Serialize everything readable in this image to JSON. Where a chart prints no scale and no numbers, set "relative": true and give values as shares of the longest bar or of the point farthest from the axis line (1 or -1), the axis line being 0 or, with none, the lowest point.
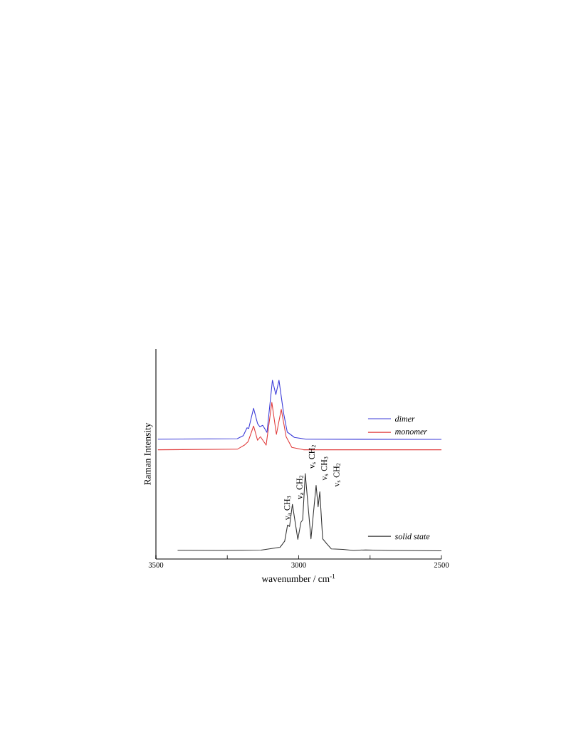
{
  "chart_data": {
    "type": "line",
    "relative": true,
    "xlabel": "wavenumber / cm$^{-1}$",
    "ylabel": "Raman Intensity",
    "xlim": [
      3500,
      2500
    ],
    "xticks": [
      3500,
      {
        "value": 3250,
        "label": null
      },
      3000,
      {
        "value": 2750,
        "label": null
      },
      2500
    ],
    "legend": "right",
    "series": [
      {
        "name": "dimer",
        "color": "#3a3ad8",
        "x": [
          3493,
          3215,
          3194,
          3181,
          3175,
          3158,
          3144,
          3136,
          3126,
          3111,
          3092,
          3080,
          3069,
          3053,
          3040,
          3015,
          2974,
          2500
        ],
        "values": [
          0.67,
          0.673,
          0.69,
          0.734,
          0.73,
          0.843,
          0.757,
          0.74,
          0.748,
          0.708,
          1.0,
          0.92,
          1.0,
          0.817,
          0.71,
          0.68,
          0.67,
          0.669
        ]
      },
      {
        "name": "monomer",
        "color": "#e03a3a",
        "x": [
          3493,
          3215,
          3190,
          3177,
          3158,
          3144,
          3134,
          3114,
          3094,
          3078,
          3061,
          3044,
          3024,
          2983,
          2500
        ],
        "values": [
          0.611,
          0.614,
          0.637,
          0.657,
          0.744,
          0.664,
          0.684,
          0.637,
          0.876,
          0.697,
          0.837,
          0.684,
          0.624,
          0.611,
          0.611
        ]
      },
      {
        "name": "solid state",
        "color": "#333333",
        "x": [
          3424,
          3265,
          3132,
          3065,
          3049,
          3039,
          3032,
          3022,
          3003,
          2992,
          2986,
          2977,
          2957,
          2939,
          2932,
          2926,
          2916,
          2901,
          2886,
          2845,
          2808,
          2766,
          2684,
          2500
        ],
        "values": [
          0.049,
          0.048,
          0.05,
          0.066,
          0.1,
          0.19,
          0.182,
          0.306,
          0.11,
          0.206,
          0.219,
          0.478,
          0.113,
          0.412,
          0.292,
          0.376,
          0.113,
          0.084,
          0.057,
          0.054,
          0.048,
          0.051,
          0.048,
          0.046
        ]
      }
    ],
    "annotations": [
      {
        "text": "v$_{a}$ CH$_{3}$",
        "x": 3039,
        "y": 0.19
      },
      {
        "text": "v$_{a}$ CH$_{2}$",
        "x": 3022,
        "y": 0.306
      },
      {
        "text": "v$_{s}$ CH$_{2}$",
        "x": 2977,
        "y": 0.478
      },
      {
        "text": "v$_{s}$ CH$_{3}$",
        "x": 2939,
        "y": 0.412
      },
      {
        "text": "v$_{s}$ CH$_{2}$",
        "x": 2926,
        "y": 0.376
      }
    ]
  }
}
